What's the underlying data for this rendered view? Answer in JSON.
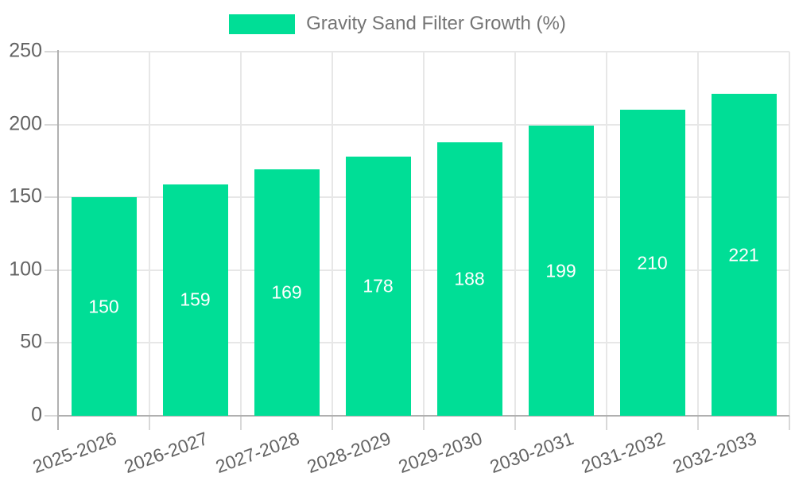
{
  "chart_data": {
    "type": "bar",
    "title": "Gravity Sand Filter Growth (%)",
    "categories": [
      "2025-2026",
      "2026-2027",
      "2027-2028",
      "2028-2029",
      "2029-2030",
      "2030-2031",
      "2031-2032",
      "2032-2033"
    ],
    "values": [
      150,
      159,
      169,
      178,
      188,
      199,
      210,
      221
    ],
    "yticks": [
      0,
      50,
      100,
      150,
      200,
      250
    ],
    "ylim": [
      0,
      250
    ],
    "xlabel": "",
    "ylabel": "",
    "grid": true,
    "legend_position": "top-center",
    "data_labels": "inside-center",
    "colors": {
      "bar": "#00DE96",
      "bar_label": "#ffffff",
      "gridline": "#e7e7e7",
      "tick": "#d8d8d8",
      "axis_line": "#b0b0b0",
      "axis_text": "#636363",
      "legend_text": "#757575",
      "background": "#ffffff"
    }
  }
}
